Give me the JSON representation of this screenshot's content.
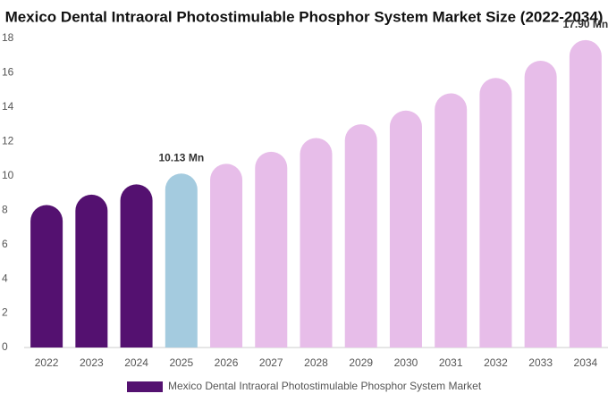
{
  "chart_data": {
    "type": "bar",
    "title": "Mexico Dental Intraoral Photostimulable Phosphor System Market Size (2022-2034)",
    "categories": [
      "2022",
      "2023",
      "2024",
      "2025",
      "2026",
      "2027",
      "2028",
      "2029",
      "2030",
      "2031",
      "2032",
      "2033",
      "2034"
    ],
    "series": [
      {
        "name": "Mexico Dental Intraoral Photostimulable Phosphor System Market",
        "color": "#541170",
        "values": [
          8.3,
          8.9,
          9.5,
          10.13,
          10.7,
          11.4,
          12.2,
          13.0,
          13.8,
          14.8,
          15.7,
          16.7,
          17.9
        ],
        "value_labels": [
          null,
          null,
          null,
          "10.13 Mn",
          null,
          null,
          null,
          null,
          null,
          null,
          null,
          null,
          "17.90 Mn"
        ]
      }
    ],
    "colors": [
      "#541170",
      "#541170",
      "#541170",
      "#a4cbdf",
      "#e7bde9",
      "#e7bde9",
      "#e7bde9",
      "#e7bde9",
      "#e7bde9",
      "#e7bde9",
      "#e7bde9",
      "#e7bde9",
      "#e7bde9"
    ],
    "ylim": [
      0,
      18
    ],
    "yticks": [
      0,
      2,
      4,
      6,
      8,
      10,
      12,
      14,
      16,
      18
    ],
    "grid": false
  }
}
